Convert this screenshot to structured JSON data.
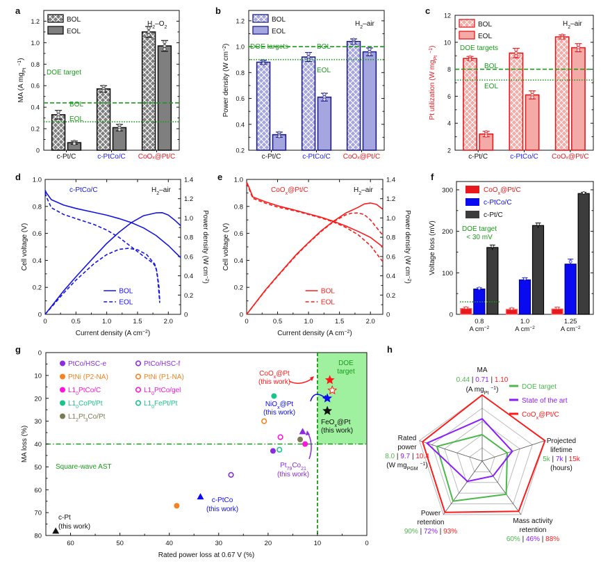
{
  "panel_labels": [
    "a",
    "b",
    "c",
    "d",
    "e",
    "f",
    "g",
    "h"
  ],
  "colors": {
    "black": "#111111",
    "gray_bar": "#7f7f7f",
    "blue_label": "#1a1aff",
    "red_label": "#e8191d",
    "green_doe": "#1a9a1a",
    "panel_b_edge": "#1c1c8c",
    "panel_b_fill": "#a5a5e0",
    "panel_c_edge": "#e8191d",
    "panel_c_fill": "#f4aaa6",
    "f_red": "#e8191d",
    "f_blue": "#0a0af0",
    "f_dark": "#3c3c3c",
    "g_purple": "#8a2be2",
    "g_orange": "#f58220",
    "g_magenta": "#ff14d8",
    "g_teal": "#19c38a",
    "g_olive": "#7a7a55",
    "h_green": "#4cb84c",
    "h_purple": "#8c1aff",
    "h_red": "#ff1a1a",
    "doe_box": "#9ff09f"
  },
  "chart_data": [
    {
      "id": "a",
      "type": "bar",
      "title": "H₂–O₂",
      "ylabel": "MA (A mg_Pt⁻¹)",
      "ylim": [
        0,
        1.3
      ],
      "yticks": [
        0,
        0.2,
        0.4,
        0.6,
        0.8,
        1.0,
        1.2
      ],
      "categories": [
        "c-Pt/C",
        "c-PtCo/C",
        "CoOₓ@Pt/C"
      ],
      "category_colors": [
        "#111111",
        "#1a1aff",
        "#e8191d"
      ],
      "series": [
        {
          "name": "BOL",
          "pattern": "crosshatch",
          "values": [
            0.33,
            0.57,
            1.1
          ],
          "err": [
            0.04,
            0.03,
            0.05
          ]
        },
        {
          "name": "EOL",
          "pattern": "solid",
          "values": [
            0.07,
            0.21,
            0.97
          ],
          "err": [
            0.015,
            0.03,
            0.05
          ]
        }
      ],
      "reference_lines": [
        {
          "label": "BOL",
          "value": 0.44,
          "style": "dashed"
        },
        {
          "label": "EOL",
          "value": 0.264,
          "style": "dotted"
        }
      ],
      "annotation": "DOE target"
    },
    {
      "id": "b",
      "type": "bar",
      "title": "H₂–air",
      "ylabel": "Power density (W cm⁻²)",
      "ylim": [
        0.2,
        1.28
      ],
      "yticks": [
        0.2,
        0.4,
        0.6,
        0.8,
        1.0,
        1.2
      ],
      "categories": [
        "c-Pt/C",
        "c-PtCo/C",
        "CoOₓ@Pt/C"
      ],
      "category_colors": [
        "#111111",
        "#1a1aff",
        "#e8191d"
      ],
      "series": [
        {
          "name": "BOL",
          "pattern": "crosshatch",
          "values": [
            0.88,
            0.92,
            1.04
          ],
          "err": [
            0.015,
            0.035,
            0.02
          ]
        },
        {
          "name": "EOL",
          "pattern": "solid",
          "values": [
            0.32,
            0.61,
            0.96
          ],
          "err": [
            0.02,
            0.03,
            0.03
          ]
        }
      ],
      "reference_lines": [
        {
          "label": "BOL",
          "value": 1.0,
          "style": "dashed"
        },
        {
          "label": "EOL",
          "value": 0.9,
          "style": "dotted"
        }
      ],
      "annotation": "DOE targets"
    },
    {
      "id": "c",
      "type": "bar",
      "title": "H₂–air",
      "ylabel": "Pt utilization (W mg_Pt⁻¹)",
      "ylim": [
        2,
        12
      ],
      "yticks": [
        2,
        4,
        6,
        8,
        10,
        12
      ],
      "categories": [
        "c-Pt/C",
        "c-PtCo/C",
        "CoOₓ@Pt/C"
      ],
      "category_colors": [
        "#111111",
        "#1a1aff",
        "#e8191d"
      ],
      "series": [
        {
          "name": "BOL",
          "pattern": "crosshatch",
          "values": [
            8.8,
            9.2,
            10.4
          ],
          "err": [
            0.15,
            0.35,
            0.15
          ]
        },
        {
          "name": "EOL",
          "pattern": "solid",
          "values": [
            3.2,
            6.1,
            9.6
          ],
          "err": [
            0.2,
            0.3,
            0.3
          ]
        }
      ],
      "reference_lines": [
        {
          "label": "BOL",
          "value": 8.0,
          "style": "dashed"
        },
        {
          "label": "EOL",
          "value": 7.2,
          "style": "dotted"
        }
      ],
      "annotation": "DOE targets"
    },
    {
      "id": "d",
      "type": "line",
      "title": "H₂–air",
      "sample": "c-PtCo/C",
      "xlabel": "Current density (A cm⁻²)",
      "ylabel": "Cell voltage (V)",
      "y2label": "Power density (W cm⁻²)",
      "xlim": [
        0,
        2.2
      ],
      "ylim": [
        0,
        1.0
      ],
      "y2lim": [
        0,
        1.4
      ],
      "xticks": [
        0,
        0.5,
        1.0,
        1.5,
        2.0
      ],
      "yticks": [
        0,
        0.2,
        0.4,
        0.6,
        0.8,
        1.0
      ],
      "y2ticks": [
        0,
        0.2,
        0.4,
        0.6,
        0.8,
        1.0,
        1.2,
        1.4
      ],
      "series": [
        {
          "name": "BOL",
          "style": "solid",
          "axis": "voltage",
          "x": [
            0,
            0.02,
            0.1,
            0.3,
            0.5,
            0.8,
            1.0,
            1.2,
            1.4,
            1.6,
            1.8,
            2.0,
            2.2
          ],
          "y": [
            0.92,
            0.9,
            0.85,
            0.81,
            0.785,
            0.755,
            0.735,
            0.71,
            0.68,
            0.64,
            0.585,
            0.51,
            0.42
          ]
        },
        {
          "name": "BOL",
          "style": "solid",
          "axis": "power",
          "x": [
            0,
            0.3,
            0.5,
            0.8,
            1.0,
            1.2,
            1.4,
            1.6,
            1.8,
            1.9,
            2.0,
            2.1,
            2.2
          ],
          "y": [
            0,
            0.243,
            0.39,
            0.6,
            0.735,
            0.852,
            0.952,
            1.024,
            1.053,
            1.055,
            1.03,
            0.98,
            0.92
          ]
        },
        {
          "name": "EOL",
          "style": "dashed",
          "axis": "voltage",
          "x": [
            0,
            0.02,
            0.1,
            0.3,
            0.5,
            0.8,
            1.0,
            1.2,
            1.4,
            1.6,
            1.75,
            1.8,
            1.82,
            1.85,
            1.86
          ],
          "y": [
            0.9,
            0.87,
            0.79,
            0.74,
            0.71,
            0.665,
            0.625,
            0.57,
            0.5,
            0.43,
            0.38,
            0.35,
            0.3,
            0.2,
            0.1
          ]
        },
        {
          "name": "EOL",
          "style": "dashed",
          "axis": "power",
          "x": [
            0,
            0.3,
            0.5,
            0.8,
            1.0,
            1.2,
            1.35,
            1.5,
            1.65,
            1.78,
            1.81,
            1.83,
            1.85,
            1.86
          ],
          "y": [
            0,
            0.22,
            0.355,
            0.53,
            0.62,
            0.675,
            0.685,
            0.67,
            0.62,
            0.52,
            0.45,
            0.35,
            0.2,
            0.12
          ]
        }
      ]
    },
    {
      "id": "e",
      "type": "line",
      "title": "H₂–air",
      "sample": "CoOₓ@Pt/C",
      "xlabel": "Current density (A cm⁻²)",
      "ylabel": "Cell voltage (V)",
      "y2label": "Power density (W cm⁻²)",
      "xlim": [
        0,
        2.2
      ],
      "ylim": [
        0,
        1.0
      ],
      "y2lim": [
        0,
        1.4
      ],
      "xticks": [
        0,
        0.5,
        1.0,
        1.5,
        2.0
      ],
      "yticks": [
        0,
        0.2,
        0.4,
        0.6,
        0.8,
        1.0
      ],
      "y2ticks": [
        0,
        0.2,
        0.4,
        0.6,
        0.8,
        1.0,
        1.2,
        1.4
      ],
      "series": [
        {
          "name": "BOL",
          "style": "solid",
          "axis": "voltage",
          "x": [
            0,
            0.03,
            0.1,
            0.3,
            0.5,
            0.8,
            1.0,
            1.2,
            1.4,
            1.6,
            1.8,
            2.0,
            2.2
          ],
          "y": [
            0.98,
            0.95,
            0.87,
            0.835,
            0.805,
            0.77,
            0.745,
            0.72,
            0.69,
            0.655,
            0.615,
            0.57,
            0.5
          ]
        },
        {
          "name": "BOL",
          "style": "solid",
          "axis": "power",
          "x": [
            0,
            0.3,
            0.5,
            0.8,
            1.0,
            1.2,
            1.4,
            1.6,
            1.8,
            1.9,
            2.0,
            2.1,
            2.2
          ],
          "y": [
            0,
            0.25,
            0.4,
            0.62,
            0.745,
            0.865,
            0.965,
            1.05,
            1.11,
            1.145,
            1.155,
            1.14,
            1.09
          ]
        },
        {
          "name": "EOL",
          "style": "dashed",
          "axis": "voltage",
          "x": [
            0,
            0.03,
            0.1,
            0.3,
            0.5,
            0.8,
            1.0,
            1.2,
            1.4,
            1.6,
            1.8,
            2.0,
            2.2
          ],
          "y": [
            0.97,
            0.94,
            0.86,
            0.825,
            0.795,
            0.765,
            0.74,
            0.715,
            0.685,
            0.645,
            0.59,
            0.51,
            0.39
          ]
        },
        {
          "name": "EOL",
          "style": "dashed",
          "axis": "power",
          "x": [
            0,
            0.3,
            0.5,
            0.8,
            1.0,
            1.2,
            1.4,
            1.6,
            1.7,
            1.8,
            1.9,
            2.0,
            2.1,
            2.2
          ],
          "y": [
            0,
            0.245,
            0.395,
            0.612,
            0.74,
            0.858,
            0.96,
            1.032,
            1.05,
            1.052,
            1.035,
            0.98,
            0.9,
            0.82
          ]
        }
      ]
    },
    {
      "id": "f",
      "type": "bar",
      "ylabel": "Voltage loss (mV)",
      "ylim": [
        0,
        320
      ],
      "yticks": [
        0,
        100,
        200,
        300
      ],
      "categories": [
        "0.8\nA cm⁻²",
        "1.0\nA cm⁻²",
        "1.25\nA cm⁻²"
      ],
      "series": [
        {
          "name": "CoOₓ@Pt/C",
          "values": [
            14,
            12,
            13
          ],
          "err": [
            3,
            3,
            4
          ]
        },
        {
          "name": "c-PtCo/C",
          "values": [
            61,
            83,
            121
          ],
          "err": [
            3,
            5,
            12
          ]
        },
        {
          "name": "c-Pt/C",
          "values": [
            161,
            214,
            291
          ],
          "err": [
            6,
            6,
            3
          ]
        }
      ],
      "reference_lines": [
        {
          "label": "DOE target\n< 30 mV",
          "value": 30,
          "style": "dotted"
        }
      ],
      "legend_placement": "top-left"
    },
    {
      "id": "g",
      "type": "scatter",
      "xlabel": "Rated power loss at 0.67 V (%)",
      "ylabel": "MA loss (%)",
      "xlim": [
        65,
        0
      ],
      "ylim": [
        0,
        80
      ],
      "x_reversed": true,
      "y_reversed": true,
      "xticks": [
        60,
        50,
        40,
        30,
        20,
        10,
        0
      ],
      "yticks": [
        0,
        10,
        20,
        30,
        40,
        50,
        60,
        70,
        80
      ],
      "doe_target": {
        "label": "DOE\ntarget",
        "x_max": 10,
        "y_max": 40
      },
      "annotation": "Square-wave AST",
      "legend": [
        {
          "name": "PtCo/HSC-e",
          "marker": "circle",
          "filled": true,
          "color": "#8a2be2"
        },
        {
          "name": "PtCo/HSC-f",
          "marker": "circle",
          "filled": false,
          "color": "#8a2be2"
        },
        {
          "name": "PtNi (P2-NA)",
          "marker": "circle",
          "filled": true,
          "color": "#f58220"
        },
        {
          "name": "PtNi (P1-NA)",
          "marker": "circle",
          "filled": false,
          "color": "#f58220"
        },
        {
          "name": "L1₀PtCo/C",
          "marker": "circle",
          "filled": true,
          "color": "#ff14d8"
        },
        {
          "name": "L1₀PtCo/gel",
          "marker": "circle",
          "filled": false,
          "color": "#ff14d8"
        },
        {
          "name": "L1₀CoPt/Pt",
          "marker": "circle",
          "filled": true,
          "color": "#19c38a"
        },
        {
          "name": "L1₀FePt/Pt",
          "marker": "circle",
          "filled": false,
          "color": "#19c38a"
        },
        {
          "name": "L1₂Pt₃Co/Pt",
          "marker": "circle",
          "filled": true,
          "color": "#7a7a55"
        }
      ],
      "points": [
        {
          "name": "PtCo/HSC-e",
          "x": 19.0,
          "y": 43.0,
          "marker": "circle",
          "filled": true,
          "color": "#8a2be2"
        },
        {
          "name": "PtCo/HSC-f",
          "x": 27.5,
          "y": 53.5,
          "marker": "circle",
          "filled": false,
          "color": "#8a2be2"
        },
        {
          "name": "PtNi (P2-NA)",
          "x": 38.5,
          "y": 67.0,
          "marker": "circle",
          "filled": true,
          "color": "#f58220"
        },
        {
          "name": "PtNi (P1-NA)",
          "x": 20.8,
          "y": 30.0,
          "marker": "circle",
          "filled": false,
          "color": "#f58220"
        },
        {
          "name": "L1₀PtCo/C",
          "x": 12.5,
          "y": 40.0,
          "marker": "circle",
          "filled": true,
          "color": "#ff14d8"
        },
        {
          "name": "L1₀PtCo/gel",
          "x": 17.5,
          "y": 37.0,
          "marker": "circle",
          "filled": false,
          "color": "#ff14d8"
        },
        {
          "name": "L1₀CoPt/Pt",
          "x": 18.8,
          "y": 19.0,
          "marker": "circle",
          "filled": true,
          "color": "#19c38a"
        },
        {
          "name": "L1₀FePt/Pt",
          "x": 17.7,
          "y": 42.5,
          "marker": "circle",
          "filled": false,
          "color": "#19c38a"
        },
        {
          "name": "L1₂Pt₃Co/Pt",
          "x": 13.5,
          "y": 38.0,
          "marker": "circle",
          "filled": true,
          "color": "#7a7a55"
        },
        {
          "name": "Pt79Co21 (this work)",
          "x": 13.0,
          "y": 34.5,
          "marker": "triangle",
          "filled": true,
          "color": "#8a2be2"
        },
        {
          "name": "c-PtCo (this work)",
          "x": 33.7,
          "y": 63.0,
          "marker": "triangle",
          "filled": true,
          "color": "#0a0af0"
        },
        {
          "name": "c-Pt (this work)",
          "x": 63.0,
          "y": 78.0,
          "marker": "triangle",
          "filled": true,
          "color": "#111111"
        },
        {
          "name": "CoOₓ@Pt (this work)",
          "x": 7.5,
          "y": 12.0,
          "marker": "star",
          "filled": true,
          "color": "#ff1a1a"
        },
        {
          "name": "CoOₓ@Pt (this work, open)",
          "x": 7.0,
          "y": 16.5,
          "marker": "star",
          "filled": false,
          "color": "#ff1a1a"
        },
        {
          "name": "NiOₓ@Pt (this work)",
          "x": 8.0,
          "y": 20.0,
          "marker": "star",
          "filled": true,
          "color": "#0a0af0"
        },
        {
          "name": "FeOₓ@Pt (this work)",
          "x": 8.0,
          "y": 25.5,
          "marker": "star",
          "filled": true,
          "color": "#111111"
        }
      ],
      "labels": [
        {
          "text": [
            "CoOₓ@Pt",
            "(this work)"
          ],
          "color": "#ff1a1a"
        },
        {
          "text": [
            "NiOₓ@Pt",
            "(this work)"
          ],
          "color": "#0a0af0"
        },
        {
          "text": [
            "FeOₓ@Pt",
            "(this work)"
          ],
          "color": "#111111"
        },
        {
          "text": [
            "Pt₇₉Co₂₁",
            "(this work)"
          ],
          "color": "#8a2be2"
        },
        {
          "text": [
            "c-PtCo",
            "(this work)"
          ],
          "color": "#0a0af0"
        },
        {
          "text": [
            "c-Pt",
            "(this work)"
          ],
          "color": "#111111"
        }
      ]
    },
    {
      "id": "h",
      "type": "radar",
      "axes": [
        {
          "name": "MA",
          "unit": "(A mg_Pt⁻¹)",
          "values_text": [
            "0.44",
            "0.71",
            "1.10"
          ]
        },
        {
          "name": "Projected lifetime",
          "unit": "(hours)",
          "values_text": [
            "5k",
            "7k",
            "15k"
          ]
        },
        {
          "name": "Mass activity retention",
          "unit": "",
          "values_text": [
            "60%",
            "46%",
            "88%"
          ]
        },
        {
          "name": "Power retention",
          "unit": "",
          "values_text": [
            "90%",
            "72%",
            "93%"
          ]
        },
        {
          "name": "Rated power",
          "unit": "(W mg_PGM⁻¹)",
          "values_text": [
            "8.0",
            "9.7",
            "10.4"
          ]
        }
      ],
      "series": [
        {
          "name": "DOE target",
          "color": "#4cb84c",
          "values": [
            0.4,
            0.4,
            0.62,
            0.75,
            0.72
          ]
        },
        {
          "name": "State of the art",
          "color": "#8c1aff",
          "values": [
            0.64,
            0.48,
            0.28,
            0.38,
            0.88
          ]
        },
        {
          "name": "CoOₓ@Pt/C",
          "color": "#ff1a1a",
          "values": [
            1.0,
            1.0,
            0.94,
            0.96,
            0.95
          ]
        }
      ],
      "rings": 5,
      "legend_placement": "top-right"
    }
  ]
}
